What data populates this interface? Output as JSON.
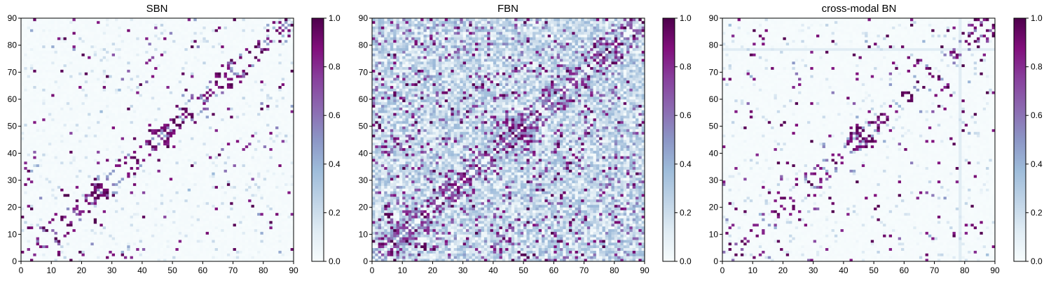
{
  "figure": {
    "colormap": [
      "#f7fcfd",
      "#e0ecf4",
      "#bfd3e6",
      "#9ebcda",
      "#8c96c6",
      "#8c6bb1",
      "#88419d",
      "#810f7c",
      "#4d004b"
    ]
  },
  "chart_data": [
    {
      "type": "heatmap",
      "title": "SBN",
      "xlabel": "",
      "ylabel": "",
      "matrix_size": 90,
      "xlim": [
        0,
        90
      ],
      "ylim": [
        0,
        90
      ],
      "xticks": [
        "0",
        "10",
        "20",
        "30",
        "40",
        "50",
        "60",
        "70",
        "80",
        "90"
      ],
      "yticks": [
        "0",
        "10",
        "20",
        "30",
        "40",
        "50",
        "60",
        "70",
        "80",
        "90"
      ],
      "vmin": 0,
      "vmax": 1,
      "colorbar_ticks": [
        "0.0",
        "0.2",
        "0.4",
        "0.6",
        "0.8",
        "1.0"
      ],
      "pattern": {
        "kind": "sparse",
        "seed": 11,
        "background": 0.02,
        "density": 0.03,
        "near_diag": 0.35,
        "near_width": 6,
        "clusters": [
          [
            44,
            46,
            5,
            0.55
          ],
          [
            24,
            26,
            4,
            0.5
          ],
          [
            60,
            58,
            4,
            0.45
          ],
          [
            50,
            50,
            3,
            0.4
          ]
        ]
      }
    },
    {
      "type": "heatmap",
      "title": "FBN",
      "xlabel": "",
      "ylabel": "",
      "matrix_size": 90,
      "xlim": [
        0,
        90
      ],
      "ylim": [
        0,
        90
      ],
      "xticks": [
        "0",
        "10",
        "20",
        "30",
        "40",
        "50",
        "60",
        "70",
        "80",
        "90"
      ],
      "yticks": [
        "0",
        "10",
        "20",
        "30",
        "40",
        "50",
        "60",
        "70",
        "80",
        "90"
      ],
      "vmin": 0,
      "vmax": 1,
      "colorbar_ticks": [
        "0.0",
        "0.2",
        "0.4",
        "0.6",
        "0.8",
        "1.0"
      ],
      "pattern": {
        "kind": "dense",
        "seed": 23,
        "background": 0.18,
        "density": 0.16,
        "near_diag": 0.55,
        "near_width": 8,
        "clusters": [
          [
            48,
            48,
            10,
            0.6
          ],
          [
            25,
            25,
            6,
            0.5
          ],
          [
            78,
            78,
            6,
            0.5
          ],
          [
            10,
            10,
            6,
            0.4
          ]
        ]
      }
    },
    {
      "type": "heatmap",
      "title": "cross-modal BN",
      "xlabel": "",
      "ylabel": "",
      "matrix_size": 90,
      "xlim": [
        0,
        90
      ],
      "ylim": [
        0,
        90
      ],
      "xticks": [
        "0",
        "10",
        "20",
        "30",
        "40",
        "50",
        "60",
        "70",
        "80",
        "90"
      ],
      "yticks": [
        "0",
        "10",
        "20",
        "30",
        "40",
        "50",
        "60",
        "70",
        "80",
        "90"
      ],
      "vmin": 0,
      "vmax": 1,
      "colorbar_ticks": [
        "0.0",
        "0.2",
        "0.4",
        "0.6",
        "0.8",
        "1.0"
      ],
      "pattern": {
        "kind": "sparse",
        "seed": 37,
        "background": 0.015,
        "density": 0.028,
        "near_diag": 0.32,
        "near_width": 6,
        "clusters": [
          [
            44,
            46,
            5,
            0.55
          ],
          [
            62,
            60,
            4,
            0.45
          ],
          [
            28,
            30,
            3,
            0.4
          ]
        ],
        "band_col": 78,
        "band_value": 0.12
      }
    }
  ]
}
